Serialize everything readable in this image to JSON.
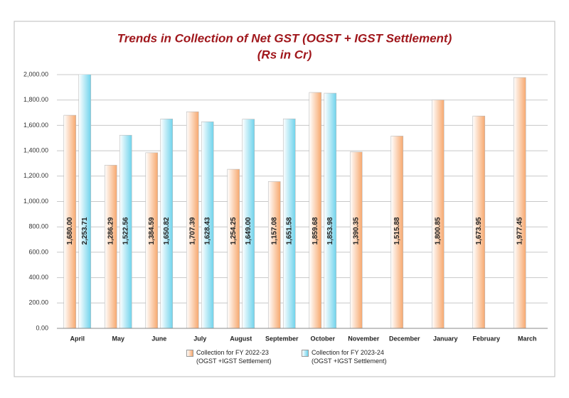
{
  "chart_data": {
    "type": "bar",
    "title": "Trends in Collection of Net GST (OGST + IGST Settlement)",
    "subtitle": "(Rs in Cr)",
    "categories": [
      "April",
      "May",
      "June",
      "July",
      "August",
      "September",
      "October",
      "November",
      "December",
      "January",
      "February",
      "March"
    ],
    "series": [
      {
        "name": "Collection for FY 2022-23 (OGST +IGST Settlement)",
        "color": "#f7a86e",
        "values": [
          1680.0,
          1286.29,
          1384.59,
          1707.39,
          1254.25,
          1157.08,
          1859.68,
          1390.35,
          1515.88,
          1800.85,
          1673.95,
          1977.45
        ],
        "value_labels": [
          "1,680.00",
          "1,286.29",
          "1,384.59",
          "1,707.39",
          "1,254.25",
          "1,157.08",
          "1,859.68",
          "1,390.35",
          "1,515.88",
          "1,800.85",
          "1,673.95",
          "1,977.45"
        ]
      },
      {
        "name": "Collection for FY 2023-24 (OGST +IGST Settlement)",
        "color": "#6fd3ec",
        "values": [
          2253.71,
          1522.56,
          1650.82,
          1628.43,
          1649.0,
          1651.58,
          1853.98,
          null,
          null,
          null,
          null,
          null
        ],
        "value_labels": [
          "2,253.71",
          "1,522.56",
          "1,650.82",
          "1,628.43",
          "1,649.00",
          "1,651.58",
          "1,853.98",
          null,
          null,
          null,
          null,
          null
        ]
      }
    ],
    "ylim": [
      0,
      2000
    ],
    "yticks": [
      {
        "value": 0,
        "label": "0.00"
      },
      {
        "value": 200,
        "label": "200.00"
      },
      {
        "value": 400,
        "label": "400.00"
      },
      {
        "value": 600,
        "label": "600.00"
      },
      {
        "value": 800,
        "label": "800.00"
      },
      {
        "value": 1000,
        "label": "1,000.00"
      },
      {
        "value": 1200,
        "label": "1,200.00"
      },
      {
        "value": 1400,
        "label": "1,400.00"
      },
      {
        "value": 1600,
        "label": "1,600.00"
      },
      {
        "value": 1800,
        "label": "1,800.00"
      },
      {
        "value": 2000,
        "label": "2,000.00"
      }
    ],
    "grid": true
  }
}
